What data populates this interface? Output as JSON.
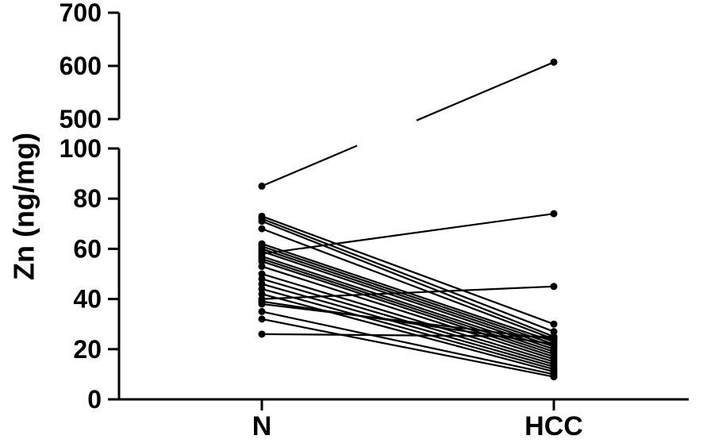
{
  "chart_data": {
    "type": "line",
    "chart_style": "paired before-after dot plot with broken y-axis",
    "ylabel": "Zn (ng/mg)",
    "xlabel": "",
    "categories": [
      "N",
      "HCC"
    ],
    "y_axis_segments": [
      {
        "range": [
          0,
          100
        ],
        "ticks": [
          0,
          20,
          40,
          60,
          80,
          100
        ]
      },
      {
        "range": [
          500,
          700
        ],
        "ticks": [
          500,
          600,
          700
        ]
      }
    ],
    "y_tick_labels": [
      "0",
      "20",
      "40",
      "60",
      "80",
      "100",
      "500",
      "600",
      "700"
    ],
    "grid": false,
    "legend": "none",
    "series": [
      {
        "values": [
          85,
          607
        ]
      },
      {
        "values": [
          58,
          74
        ]
      },
      {
        "values": [
          40,
          45
        ]
      },
      {
        "values": [
          73,
          30
        ]
      },
      {
        "values": [
          72,
          27
        ]
      },
      {
        "values": [
          71,
          25
        ]
      },
      {
        "values": [
          68,
          24
        ]
      },
      {
        "values": [
          62,
          23
        ]
      },
      {
        "values": [
          61,
          22
        ]
      },
      {
        "values": [
          60,
          21
        ]
      },
      {
        "values": [
          59,
          20
        ]
      },
      {
        "values": [
          57,
          19
        ]
      },
      {
        "values": [
          56,
          18
        ]
      },
      {
        "values": [
          55,
          17
        ]
      },
      {
        "values": [
          53,
          16
        ]
      },
      {
        "values": [
          50,
          15
        ]
      },
      {
        "values": [
          48,
          14
        ]
      },
      {
        "values": [
          46,
          13
        ]
      },
      {
        "values": [
          44,
          12
        ]
      },
      {
        "values": [
          42,
          11
        ]
      },
      {
        "values": [
          39,
          22
        ]
      },
      {
        "values": [
          38,
          24
        ]
      },
      {
        "values": [
          35,
          10
        ]
      },
      {
        "values": [
          32,
          9
        ]
      },
      {
        "values": [
          26,
          25
        ]
      }
    ]
  }
}
